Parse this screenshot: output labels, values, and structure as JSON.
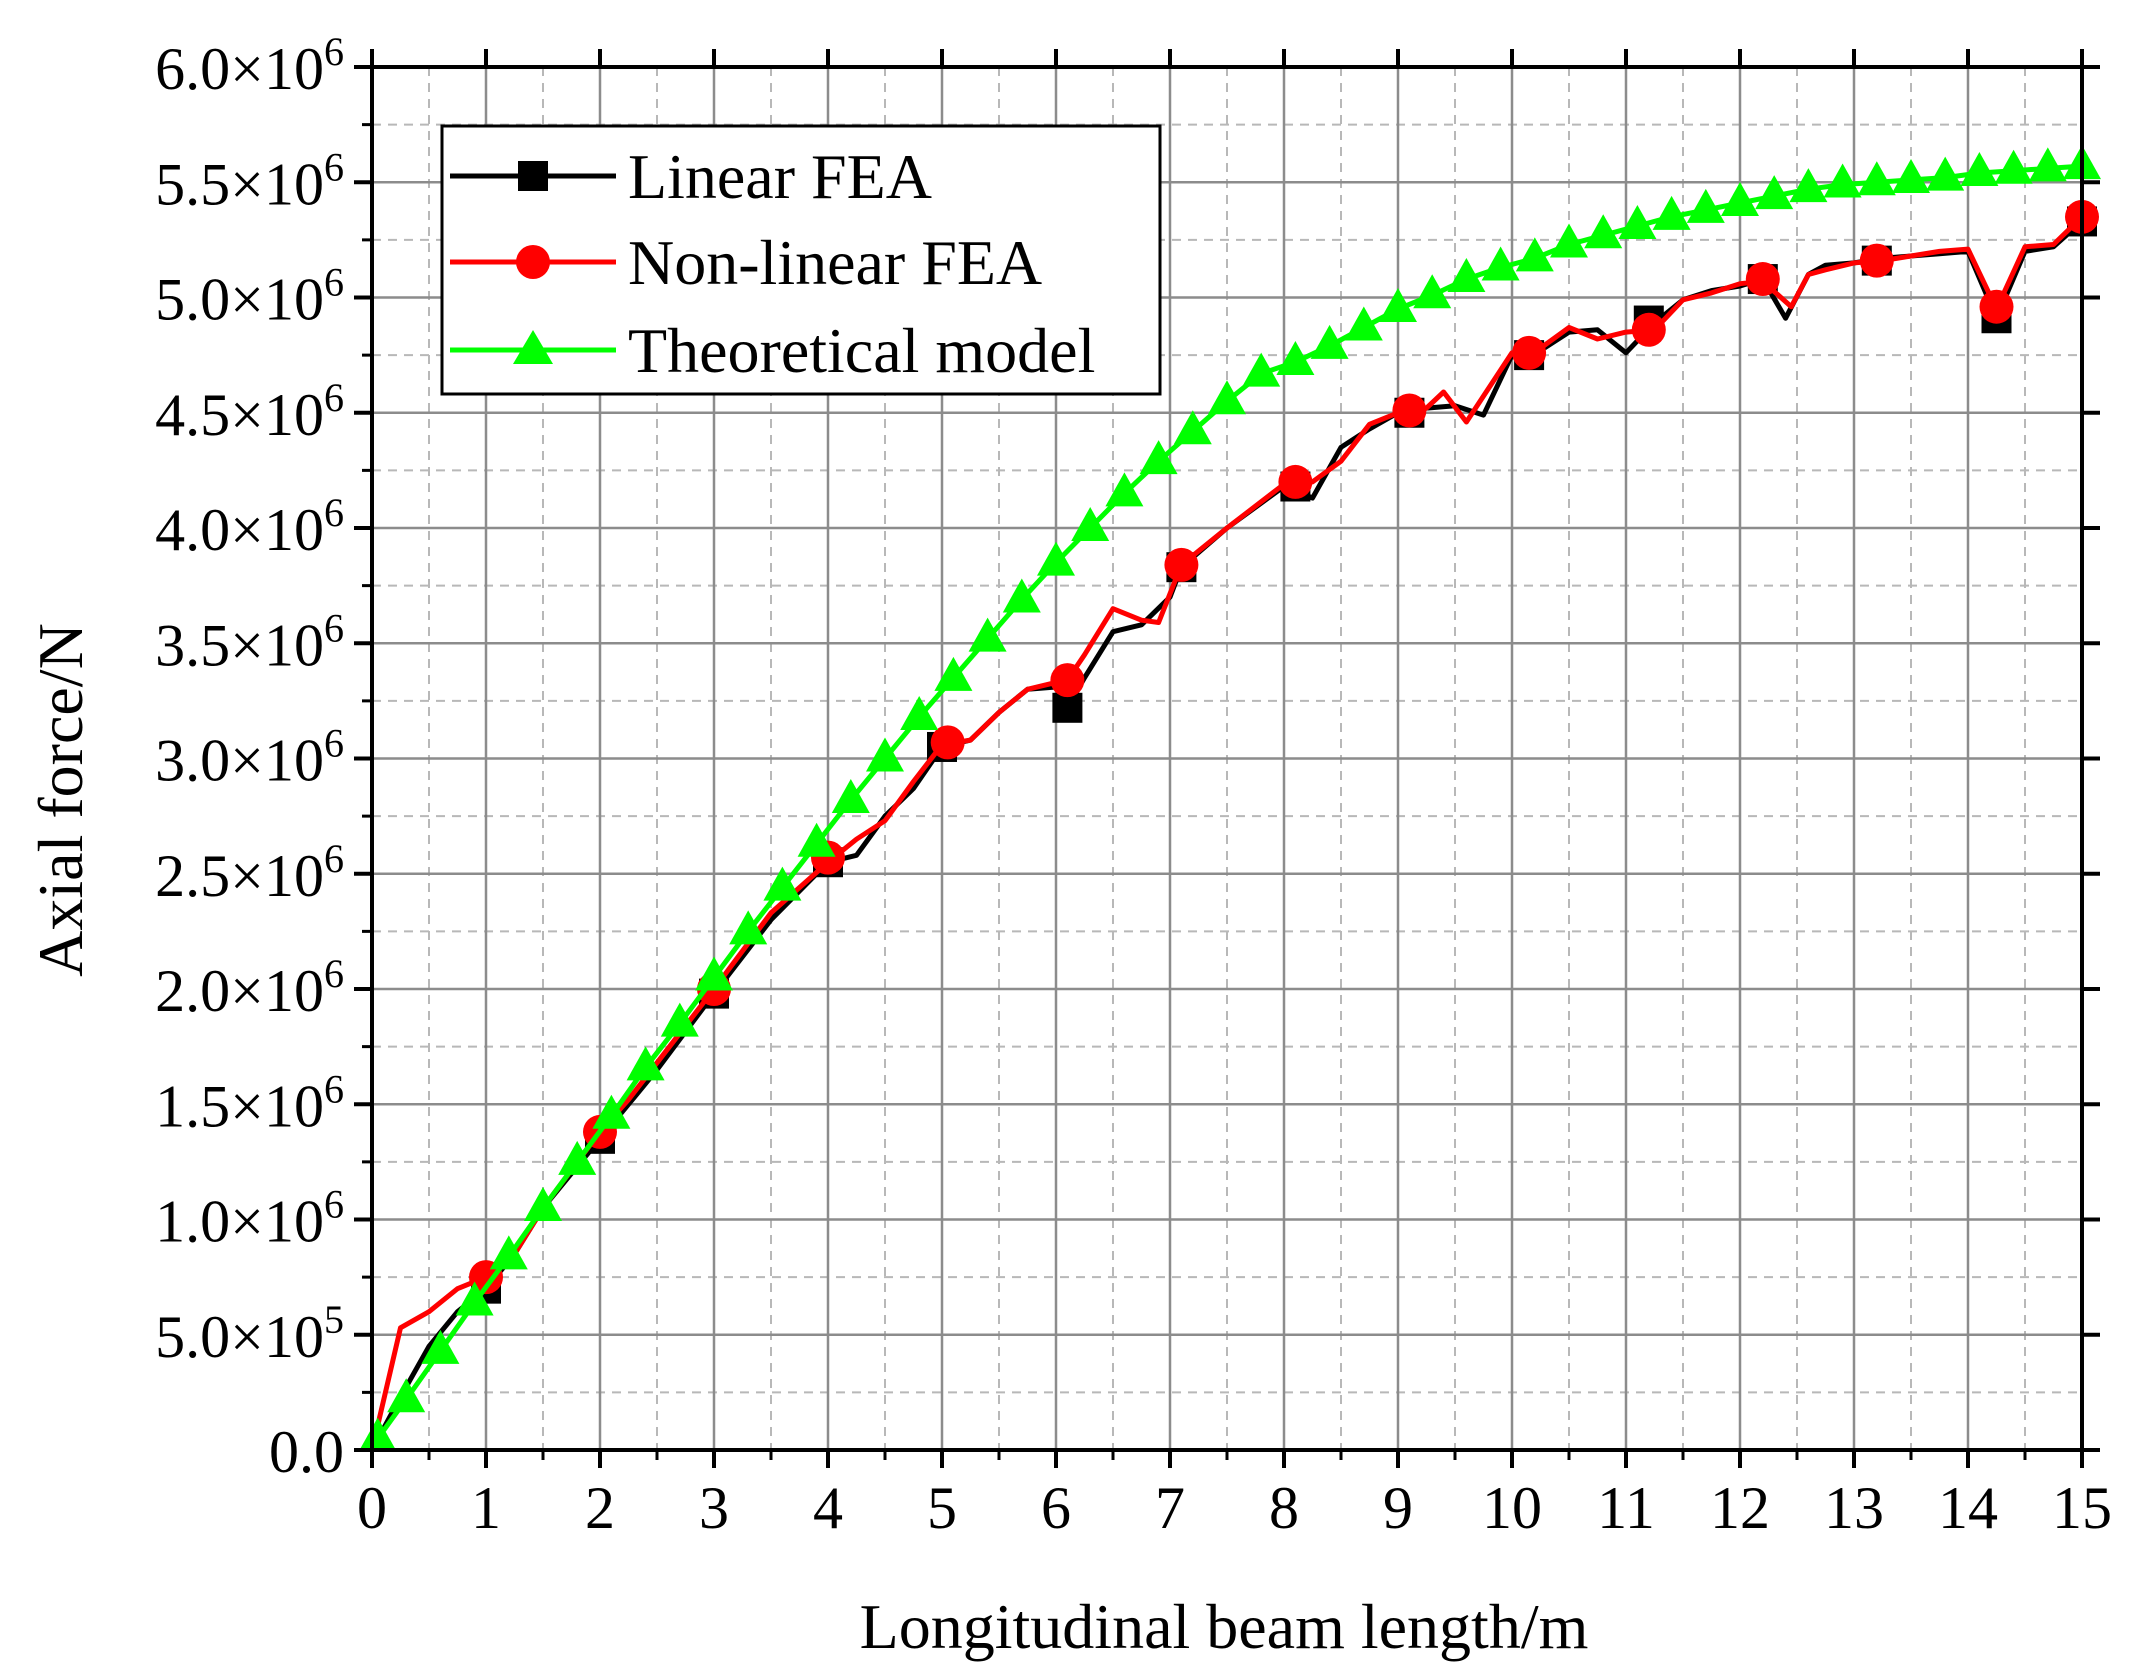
{
  "chart_data": {
    "type": "line",
    "title": "",
    "xlabel": "Longitudinal beam length/m",
    "ylabel": "Axial force/N",
    "xlim": [
      0,
      15
    ],
    "ylim": [
      0,
      6000000
    ],
    "grid": true,
    "legend_position": "top-left",
    "x_ticks": [
      0,
      1,
      2,
      3,
      4,
      5,
      6,
      7,
      8,
      9,
      10,
      11,
      12,
      13,
      14,
      15
    ],
    "x_tick_labels": [
      "0",
      "1",
      "2",
      "3",
      "4",
      "5",
      "6",
      "7",
      "8",
      "9",
      "10",
      "11",
      "12",
      "13",
      "14",
      "15"
    ],
    "y_ticks": [
      {
        "value": 0,
        "mantissa": "0.0",
        "exponent": ""
      },
      {
        "value": 500000,
        "mantissa": "5.0",
        "exponent": "5"
      },
      {
        "value": 1000000,
        "mantissa": "1.0",
        "exponent": "6"
      },
      {
        "value": 1500000,
        "mantissa": "1.5",
        "exponent": "6"
      },
      {
        "value": 2000000,
        "mantissa": "2.0",
        "exponent": "6"
      },
      {
        "value": 2500000,
        "mantissa": "2.5",
        "exponent": "6"
      },
      {
        "value": 3000000,
        "mantissa": "3.0",
        "exponent": "6"
      },
      {
        "value": 3500000,
        "mantissa": "3.5",
        "exponent": "6"
      },
      {
        "value": 4000000,
        "mantissa": "4.0",
        "exponent": "6"
      },
      {
        "value": 4500000,
        "mantissa": "4.5",
        "exponent": "6"
      },
      {
        "value": 5000000,
        "mantissa": "5.0",
        "exponent": "6"
      },
      {
        "value": 5500000,
        "mantissa": "5.5",
        "exponent": "6"
      },
      {
        "value": 6000000,
        "mantissa": "6.0",
        "exponent": "6"
      }
    ],
    "series": [
      {
        "name": "Linear FEA",
        "color": "#000000",
        "marker": "square",
        "x": [
          0,
          0.25,
          0.5,
          0.75,
          1.0,
          1.25,
          1.5,
          2.0,
          2.25,
          2.5,
          3.0,
          3.5,
          4.0,
          4.25,
          4.5,
          4.75,
          5.0,
          5.25,
          5.5,
          5.75,
          6.0,
          6.1,
          6.25,
          6.5,
          6.75,
          7.0,
          7.1,
          7.5,
          8.0,
          8.25,
          8.5,
          8.75,
          9.0,
          9.25,
          9.5,
          9.75,
          10.0,
          10.25,
          10.5,
          10.75,
          11.0,
          11.25,
          11.5,
          11.75,
          12.0,
          12.2,
          12.4,
          12.6,
          12.75,
          13.0,
          13.25,
          13.5,
          13.75,
          14.0,
          14.25,
          14.5,
          14.75,
          15.0
        ],
        "y": [
          0,
          230000,
          450000,
          600000,
          700000,
          850000,
          1050000,
          1350000,
          1500000,
          1650000,
          1980000,
          2300000,
          2550000,
          2580000,
          2750000,
          2870000,
          3050000,
          3080000,
          3200000,
          3300000,
          3310000,
          3220000,
          3350000,
          3550000,
          3580000,
          3700000,
          3830000,
          4000000,
          4180000,
          4130000,
          4350000,
          4430000,
          4500000,
          4520000,
          4530000,
          4490000,
          4750000,
          4770000,
          4850000,
          4860000,
          4760000,
          4890000,
          4990000,
          5030000,
          5050000,
          5080000,
          4910000,
          5100000,
          5140000,
          5150000,
          5170000,
          5180000,
          5190000,
          5200000,
          4910000,
          5200000,
          5220000,
          5330000
        ],
        "marker_x": [
          1.0,
          2.0,
          3.0,
          4.0,
          5.0,
          6.1,
          7.1,
          8.1,
          9.1,
          10.15,
          11.2,
          12.2,
          13.2,
          14.25,
          15.0
        ],
        "marker_y": [
          700000,
          1350000,
          1980000,
          2550000,
          3050000,
          3220000,
          3830000,
          4180000,
          4500000,
          4750000,
          4900000,
          5080000,
          5160000,
          4910000,
          5330000
        ]
      },
      {
        "name": "Non-linear FEA",
        "color": "#ff0000",
        "marker": "circle",
        "x": [
          0,
          0.25,
          0.5,
          0.75,
          1.0,
          1.25,
          1.5,
          2.0,
          2.25,
          2.5,
          3.0,
          3.5,
          4.0,
          4.25,
          4.5,
          4.75,
          5.0,
          5.25,
          5.5,
          5.75,
          6.0,
          6.1,
          6.25,
          6.5,
          6.75,
          6.9,
          7.1,
          7.5,
          8.0,
          8.25,
          8.5,
          8.75,
          9.0,
          9.25,
          9.4,
          9.6,
          10.0,
          10.25,
          10.5,
          10.75,
          11.0,
          11.25,
          11.5,
          11.75,
          12.0,
          12.2,
          12.45,
          12.6,
          12.75,
          13.0,
          13.25,
          13.5,
          13.75,
          14.0,
          14.25,
          14.5,
          14.75,
          15.0
        ],
        "y": [
          0,
          530000,
          600000,
          700000,
          750000,
          850000,
          1050000,
          1380000,
          1520000,
          1680000,
          2000000,
          2330000,
          2550000,
          2650000,
          2730000,
          2900000,
          3060000,
          3080000,
          3200000,
          3300000,
          3330000,
          3340000,
          3450000,
          3650000,
          3600000,
          3590000,
          3840000,
          4000000,
          4190000,
          4200000,
          4290000,
          4450000,
          4500000,
          4520000,
          4590000,
          4460000,
          4760000,
          4780000,
          4870000,
          4820000,
          4850000,
          4860000,
          4990000,
          5020000,
          5060000,
          5070000,
          4960000,
          5100000,
          5120000,
          5150000,
          5160000,
          5180000,
          5200000,
          5210000,
          4950000,
          5220000,
          5230000,
          5350000
        ],
        "marker_x": [
          1.0,
          2.0,
          3.0,
          4.0,
          5.05,
          6.1,
          7.1,
          8.1,
          9.1,
          10.15,
          11.2,
          12.2,
          13.2,
          14.25,
          15.0
        ],
        "marker_y": [
          750000,
          1380000,
          2000000,
          2570000,
          3070000,
          3340000,
          3840000,
          4200000,
          4510000,
          4760000,
          4860000,
          5080000,
          5160000,
          4960000,
          5350000
        ]
      },
      {
        "name": "Theoretical model",
        "color": "#00ff00",
        "marker": "triangle",
        "x": [
          0.05,
          0.3,
          0.6,
          0.9,
          1.2,
          1.5,
          1.8,
          2.1,
          2.4,
          2.7,
          3.0,
          3.3,
          3.6,
          3.9,
          4.2,
          4.5,
          4.8,
          5.1,
          5.4,
          5.7,
          6.0,
          6.3,
          6.6,
          6.9,
          7.2,
          7.5,
          7.8,
          8.1,
          8.4,
          8.7,
          9.0,
          9.3,
          9.6,
          9.9,
          10.2,
          10.5,
          10.8,
          11.1,
          11.4,
          11.7,
          12.0,
          12.3,
          12.6,
          12.9,
          13.2,
          13.5,
          13.8,
          14.1,
          14.4,
          14.7,
          15.0
        ],
        "y": [
          50000,
          220000,
          430000,
          640000,
          840000,
          1050000,
          1250000,
          1450000,
          1660000,
          1850000,
          2050000,
          2250000,
          2440000,
          2630000,
          2820000,
          3000000,
          3180000,
          3350000,
          3520000,
          3690000,
          3850000,
          4000000,
          4150000,
          4290000,
          4420000,
          4550000,
          4670000,
          4720000,
          4790000,
          4870000,
          4950000,
          5010000,
          5080000,
          5130000,
          5170000,
          5230000,
          5270000,
          5310000,
          5350000,
          5380000,
          5410000,
          5440000,
          5470000,
          5490000,
          5500000,
          5510000,
          5520000,
          5540000,
          5550000,
          5560000,
          5570000
        ]
      }
    ]
  }
}
